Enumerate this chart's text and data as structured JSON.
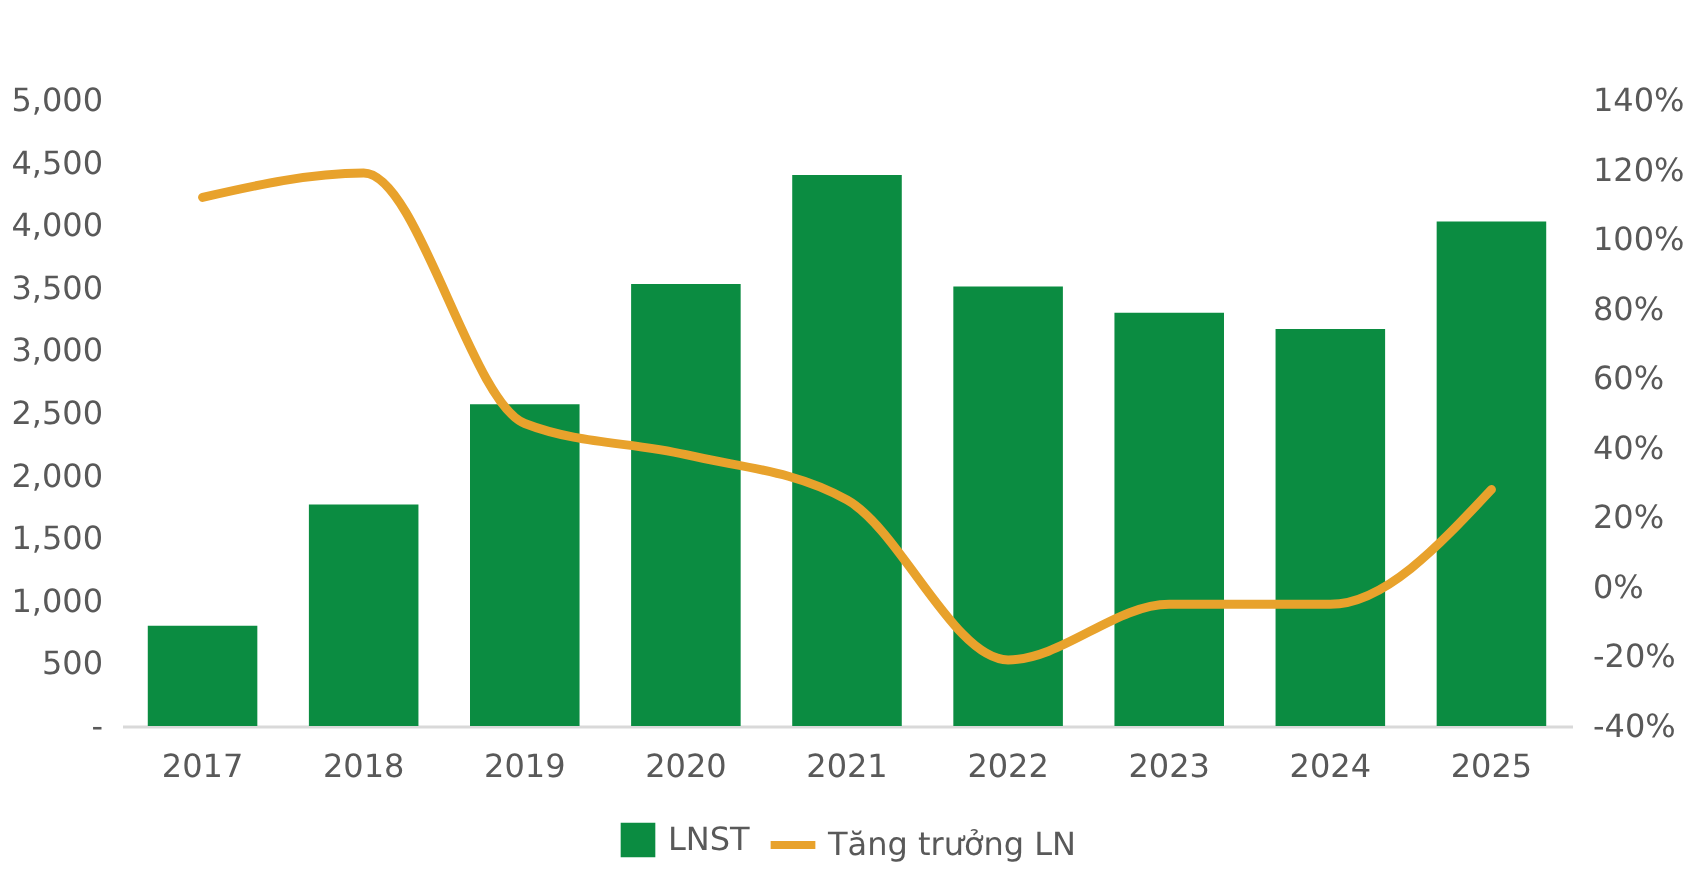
{
  "chart_data": {
    "type": "bar",
    "categories": [
      "2017",
      "2018",
      "2019",
      "2020",
      "2021",
      "2022",
      "2023",
      "2024",
      "2025"
    ],
    "series": [
      {
        "name": "LNST",
        "color": "#0b8c41",
        "values": [
          800,
          1770,
          2570,
          3530,
          4400,
          3510,
          3300,
          3170,
          4030
        ]
      },
      {
        "name": "Tăng trưởng LN",
        "type": "line",
        "axis": "y2",
        "color": "#e8a22c",
        "values": [
          112,
          119,
          47,
          38,
          25,
          -21,
          -5,
          -5,
          28
        ]
      }
    ],
    "ylim": [
      0,
      5000
    ],
    "yticks": [
      {
        "value": 0,
        "label": "-"
      },
      500,
      {
        "value": 1000,
        "label": "1,000"
      },
      {
        "value": 1500,
        "label": "1,500"
      },
      {
        "value": 2000,
        "label": "2,000"
      },
      {
        "value": 2500,
        "label": "2,500"
      },
      {
        "value": 3000,
        "label": "3,000"
      },
      {
        "value": 3500,
        "label": "3,500"
      },
      {
        "value": 4000,
        "label": "4,000"
      },
      {
        "value": 4500,
        "label": "4,500"
      },
      {
        "value": 5000,
        "label": "5,000"
      }
    ],
    "y2lim": [
      -40,
      140
    ],
    "y2ticks": [
      {
        "value": -40,
        "label": "-40%"
      },
      {
        "value": -20,
        "label": "-20%"
      },
      {
        "value": 0,
        "label": "0%"
      },
      {
        "value": 20,
        "label": "20%"
      },
      {
        "value": 40,
        "label": "40%"
      },
      {
        "value": 60,
        "label": "60%"
      },
      {
        "value": 80,
        "label": "80%"
      },
      {
        "value": 100,
        "label": "100%"
      },
      {
        "value": 120,
        "label": "120%"
      },
      {
        "value": 140,
        "label": "140%"
      }
    ],
    "legend": "bottom",
    "line_style": "solid"
  }
}
